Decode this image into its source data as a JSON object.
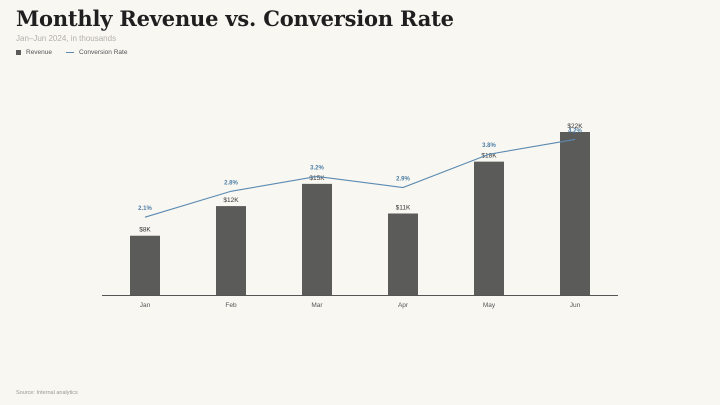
{
  "header": {
    "title": "Monthly Revenue vs. Conversion Rate",
    "subtitle": "Jan–Jun 2024, in thousands"
  },
  "legend": {
    "revenue": "Revenue",
    "conversion": "Conversion Rate"
  },
  "footer": {
    "source": "Source: Internal analytics"
  },
  "colors": {
    "bar": "#5b5b5a",
    "line": "#5b8ab1",
    "rate_label": "#4f7fa6",
    "axis": "#555555"
  },
  "chart_data": {
    "type": "bar",
    "categories": [
      "Jan",
      "Feb",
      "Mar",
      "Apr",
      "May",
      "Jun"
    ],
    "series": [
      {
        "name": "Revenue",
        "type": "bar",
        "values": [
          8,
          12,
          15,
          11,
          18,
          22
        ],
        "labels": [
          "$8K",
          "$12K",
          "$15K",
          "$11K",
          "$18K",
          "$22K"
        ]
      },
      {
        "name": "Conversion Rate",
        "type": "line",
        "values": [
          2.1,
          2.8,
          3.2,
          2.9,
          3.8,
          4.2
        ],
        "labels": [
          "2.1%",
          "2.8%",
          "3.2%",
          "2.9%",
          "3.8%",
          "4.2%"
        ]
      }
    ],
    "title": "Monthly Revenue vs. Conversion Rate",
    "subtitle": "Jan–Jun 2024, in thousands",
    "xlabel": "",
    "ylabel": "",
    "ylim": [
      0,
      22
    ],
    "y2lim": [
      0,
      4.4
    ],
    "grid": false,
    "legend_position": "top-left"
  }
}
